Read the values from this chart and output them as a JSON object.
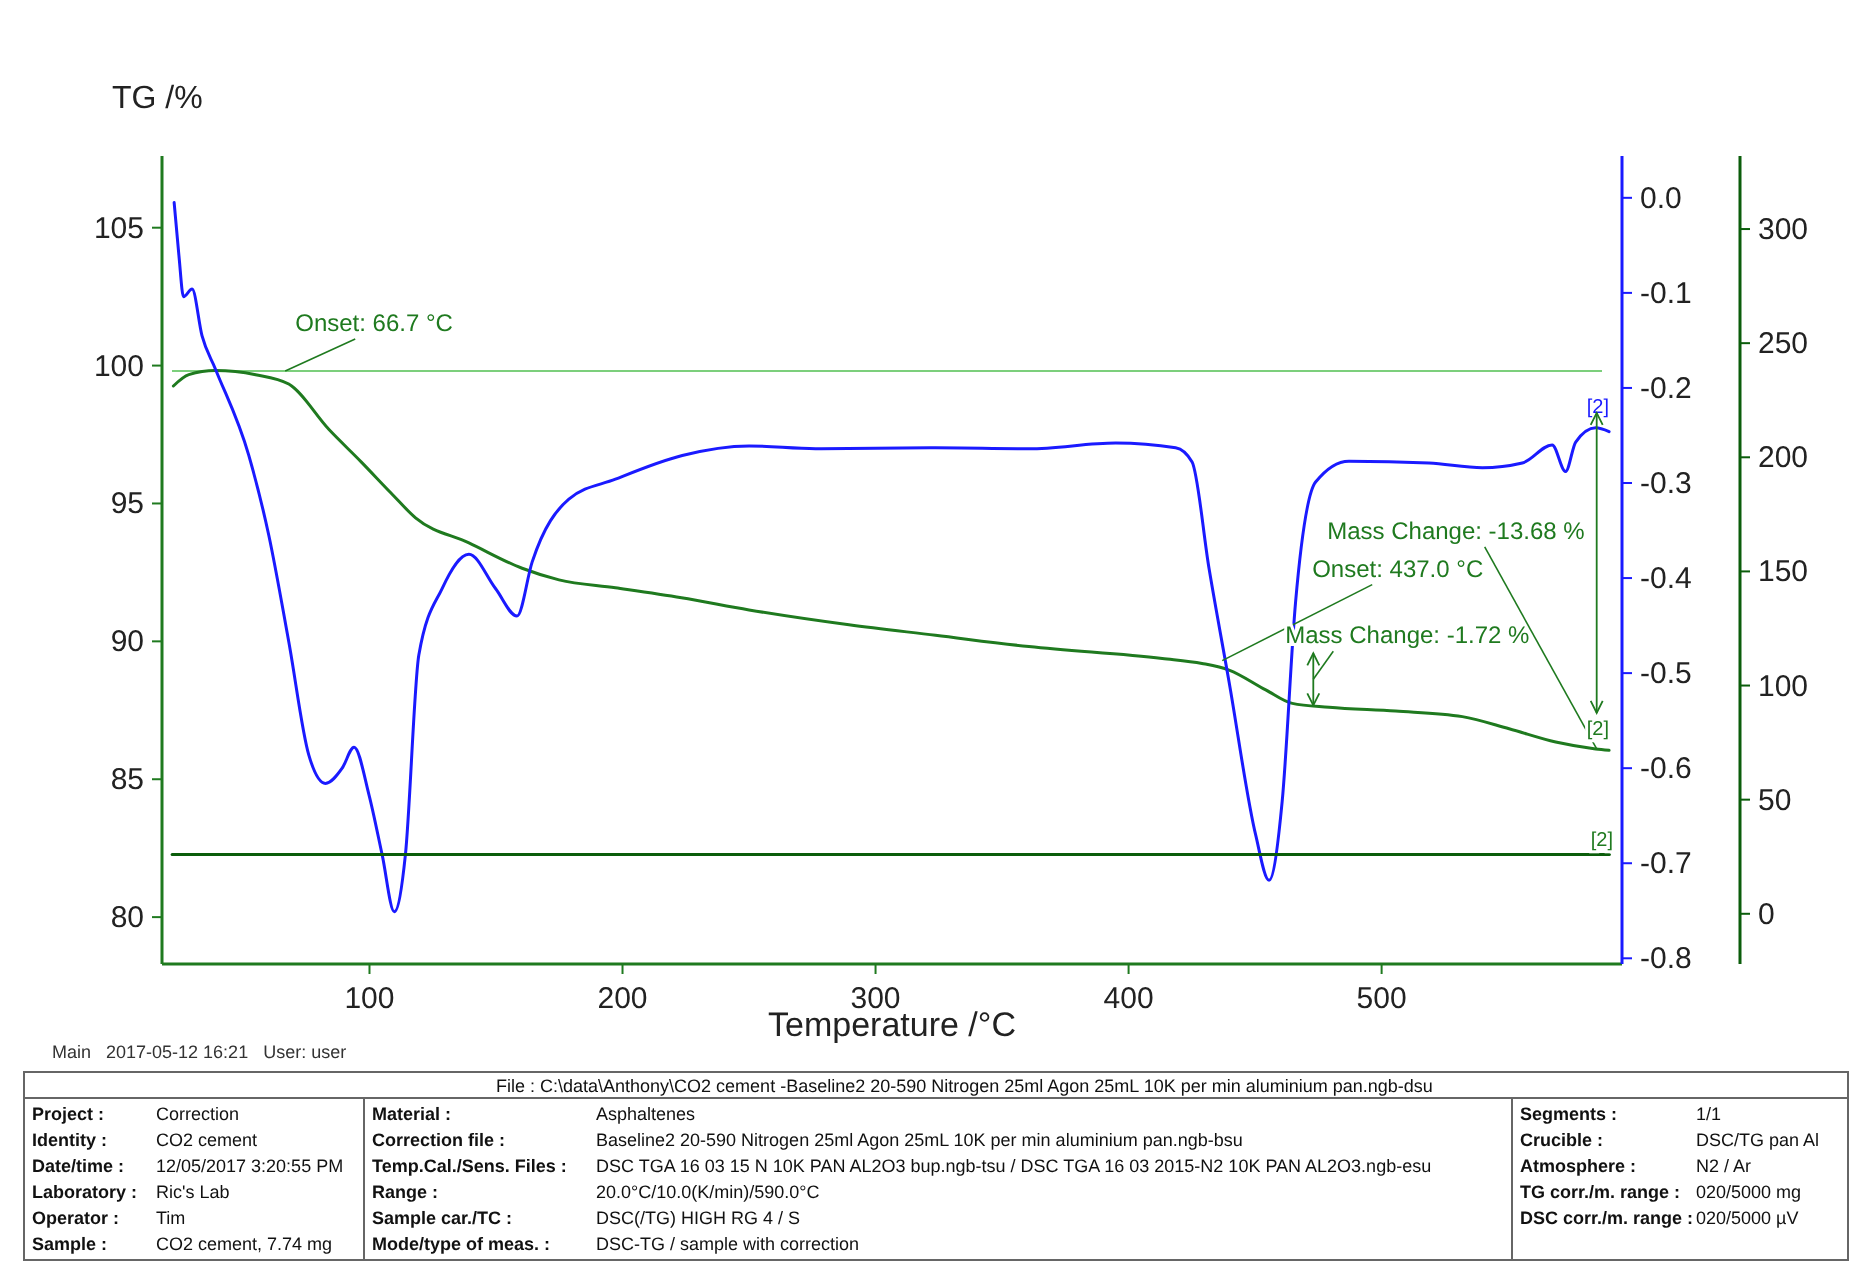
{
  "chart_data": {
    "type": "line",
    "ylabel": "TG /%",
    "xlabel": "Temperature /°C",
    "xlim": [
      18,
      595
    ],
    "xticks": [
      100,
      200,
      300,
      400,
      500
    ],
    "ylim": [
      78.3,
      107.6
    ],
    "yticks": [
      80,
      85,
      90,
      95,
      100,
      105
    ],
    "y2lim": [
      -0.806,
      0.044
    ],
    "y2ticks": [
      {
        "value": 0,
        "label": "0.0"
      },
      -0.1,
      -0.2,
      -0.3,
      -0.4,
      -0.5,
      -0.6,
      -0.7,
      -0.8
    ],
    "y3lim": [
      -22,
      332
    ],
    "y3ticks": [
      0,
      50,
      100,
      150,
      200,
      250,
      300
    ],
    "ref_lines": [
      {
        "axis": "y",
        "value": 99.8,
        "color": "#7ccf7c"
      }
    ],
    "series": [
      {
        "color": "#1f7a1f",
        "x": [
          22.5,
          28.6,
          39.1,
          55,
          68.1,
          84,
          96.8,
          108.5,
          118.2,
          139.3,
          160.3,
          174.9,
          197.2,
          223.3,
          250,
          289.5,
          323.7,
          360.6,
          413.3,
          429,
          439.7,
          454.2,
          464.7,
          479.2,
          505.5,
          531.9,
          550.4,
          568.8,
          584.6,
          589.9
        ],
        "values": [
          99.26,
          99.67,
          99.82,
          99.67,
          99.33,
          97.68,
          96.5,
          95.38,
          94.48,
          93.57,
          92.65,
          92.23,
          91.94,
          91.58,
          91.14,
          90.6,
          90.22,
          89.81,
          89.38,
          89.2,
          88.96,
          88.24,
          87.75,
          87.61,
          87.47,
          87.27,
          86.83,
          86.35,
          86.1,
          86.05
        ]
      },
      {
        "color": "#1a1aff",
        "axis": "y2",
        "x": [
          22.8,
          24.7,
          26.5,
          29.9,
          33.8,
          39.1,
          52.3,
          60.2,
          68.1,
          76,
          82.6,
          89.2,
          93.9,
          99.8,
          105,
          109.8,
          114.2,
          119.5,
          128.7,
          139.3,
          149.8,
          158.3,
          164.3,
          178.8,
          197.2,
          223.6,
          250,
          276.3,
          323.7,
          360.6,
          394.9,
          418.6,
          425.1,
          431.8,
          439.7,
          450.2,
          455.5,
          460.7,
          466,
          473.9,
          487.1,
          518.7,
          539.8,
          555.6,
          567.4,
          572.7,
          576.7,
          584.6,
          589.9
        ],
        "values": [
          -0.005,
          -0.061,
          -0.104,
          -0.096,
          -0.145,
          -0.18,
          -0.271,
          -0.355,
          -0.467,
          -0.586,
          -0.616,
          -0.6,
          -0.578,
          -0.628,
          -0.691,
          -0.751,
          -0.691,
          -0.481,
          -0.411,
          -0.375,
          -0.411,
          -0.44,
          -0.383,
          -0.317,
          -0.296,
          -0.271,
          -0.261,
          -0.264,
          -0.263,
          -0.264,
          -0.258,
          -0.263,
          -0.278,
          -0.39,
          -0.509,
          -0.67,
          -0.718,
          -0.635,
          -0.425,
          -0.299,
          -0.277,
          -0.279,
          -0.284,
          -0.279,
          -0.26,
          -0.288,
          -0.257,
          -0.242,
          -0.246
        ]
      },
      {
        "color": "#0b5d0b",
        "axis": "y3",
        "x": [
          22,
          100,
          200,
          300,
          400,
          500,
          590
        ],
        "values": [
          26,
          26,
          26,
          26,
          26,
          26,
          26
        ]
      }
    ],
    "annotations": [
      {
        "text": "Onset: 66.7 °C",
        "x": 66.7,
        "y": 99.8
      },
      {
        "text": "Onset: 437.0 °C",
        "x": 437,
        "y": 89.3
      },
      {
        "text": "Mass Change: -1.72 %",
        "x": 473,
        "y": 87.68
      },
      {
        "text": "Mass Change: -13.68 %",
        "x": 585,
        "y": 86.1
      },
      {
        "text": "[2]",
        "x": 589,
        "y": 97.7
      },
      {
        "text": "[2]",
        "x": 589,
        "y": 86.1
      },
      {
        "text": "[2]",
        "x": 589,
        "y": 82.3
      },
      "Main   2017-05-12 16:21   User: user",
      "File : C:\\data\\Anthony\\CO2 cement -Baseline2 20-590 Nitrogen 25ml Agon 25mL 10K per min aluminium pan.ngb-dsu",
      "Project :",
      "Correction",
      "Identity :",
      "CO2 cement",
      "Date/time :",
      "12/05/2017 3:20:55 PM",
      "Laboratory :",
      "Ric's Lab",
      "Operator :",
      "Tim",
      "Sample :",
      "CO2 cement, 7.74 mg",
      "Material :",
      "Asphaltenes",
      "Correction file :",
      "Baseline2 20-590 Nitrogen 25ml Agon 25mL 10K per min aluminium pan.ngb-bsu",
      "Temp.Cal./Sens. Files :",
      "DSC TGA 16 03 15 N 10K PAN AL2O3 bup.ngb-tsu / DSC TGA 16 03 2015-N2 10K PAN AL2O3.ngb-esu",
      "Range :",
      "20.0°C/10.0(K/min)/590.0°C",
      "Sample car./TC :",
      "DSC(/TG) HIGH RG 4 / S",
      "Mode/type of meas. :",
      "DSC-TG / sample with correction",
      "Segments :",
      "1/1",
      "Crucible :",
      "DSC/TG pan Al",
      "Atmosphere :",
      "N2 / Ar",
      "TG corr./m. range :",
      "020/5000 mg",
      "DSC corr./m. range :",
      "020/5000 µV"
    ]
  }
}
